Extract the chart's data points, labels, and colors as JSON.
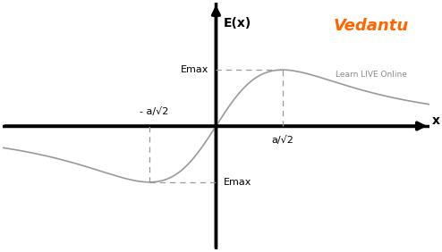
{
  "title": "E(x)",
  "xlabel": "x",
  "x_range": [
    -4.5,
    4.5
  ],
  "y_range": [
    -2.2,
    2.2
  ],
  "emax": 1.0,
  "peak_x": 1.4,
  "label_peak_x": "a/√2",
  "label_trough_x": "- a/√2",
  "label_emax_pos": "Emax",
  "label_emax_neg": "Emax",
  "curve_color": "#999999",
  "axis_color": "#000000",
  "dashed_color": "#999999",
  "background_color": "#ffffff",
  "vedantu_text": "Vedantu",
  "vedantu_sub": "Learn LIVE Online",
  "vedantu_color": "#FF6600",
  "vedantu_sub_color": "#888888"
}
